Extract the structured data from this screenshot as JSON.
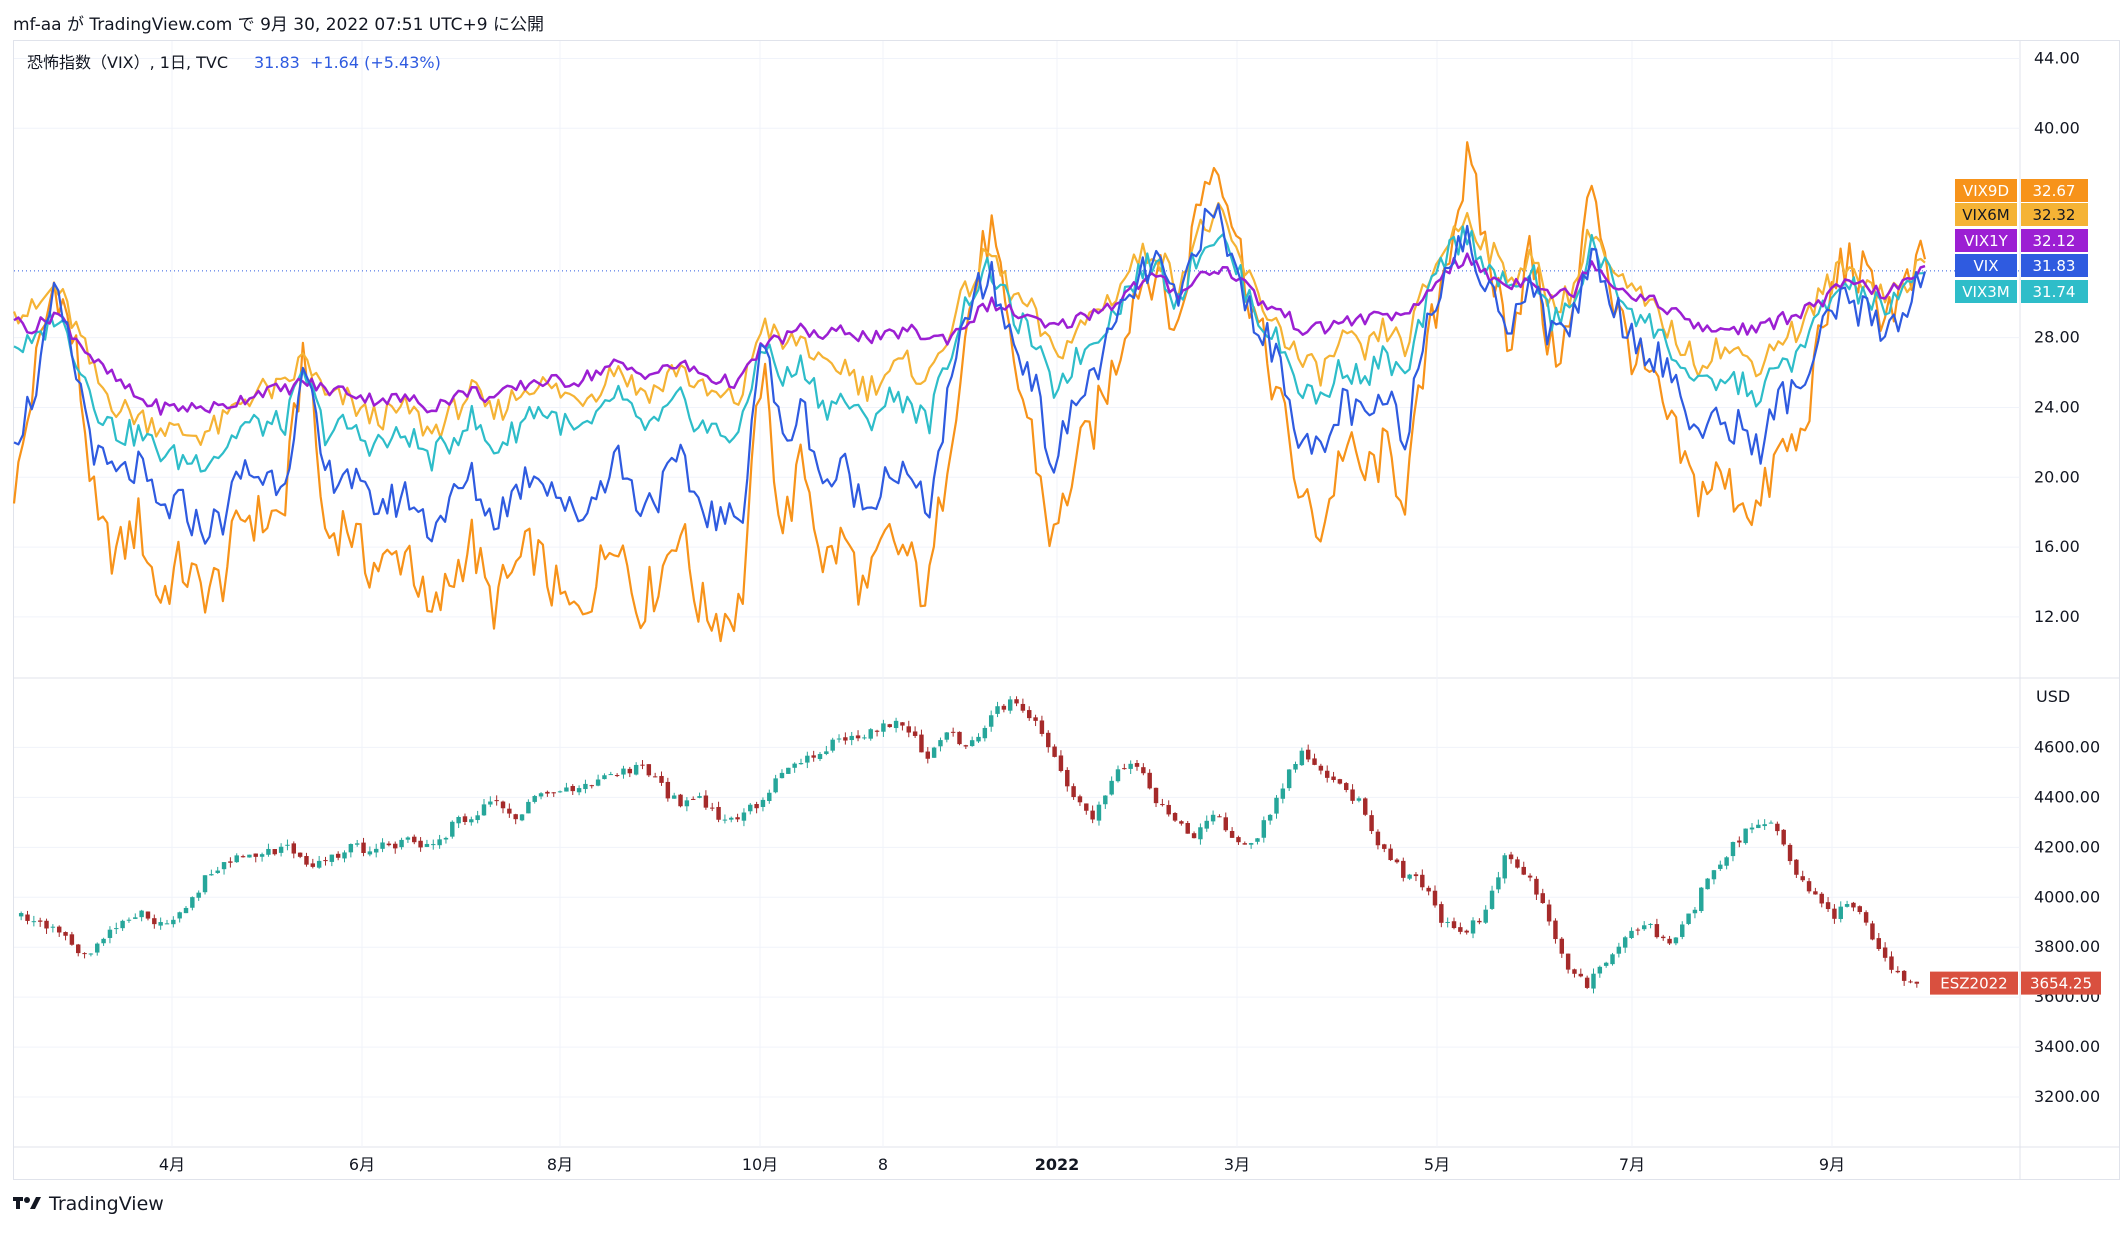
{
  "header": {
    "text": "mf-aa が TradingView.com で 9月 30, 2022 07:51 UTC+9 に公開"
  },
  "legend": {
    "title": "恐怖指数（VIX）, 1日, TVC",
    "last": "31.83",
    "change": "+1.64 (+5.43%)"
  },
  "colors": {
    "VIX9D": "#f7931a",
    "VIX6M": "#f5b335",
    "VIX1Y": "#9c1fd3",
    "VIX": "#2f5be0",
    "VIX3M": "#2ebdc9",
    "candle_up": "#26a69a",
    "candle_down": "#a52a2a",
    "es_label": "#d9503f"
  },
  "footer": {
    "brand": "TradingView",
    "logo_icon": "tradingview-logo-icon"
  },
  "chart_data": [
    {
      "type": "line",
      "ylim": [
        8.5,
        45
      ],
      "y_ticks": [
        "44.00",
        "40.00",
        "28.00",
        "24.00",
        "20.00",
        "16.00",
        "12.00"
      ],
      "x_ticks": [
        "4月",
        "6月",
        "8月",
        "10月",
        "8",
        "2022",
        "3月",
        "5月",
        "7月",
        "9月"
      ],
      "current_line": 31.83,
      "series": [
        {
          "name": "VIX9D",
          "last_label": "32.67",
          "values": [
            18.5,
            26.0,
            31.5,
            27.0,
            17.0,
            15.5,
            17.5,
            13.0,
            15.0,
            13.5,
            14.0,
            18.0,
            17.5,
            18.0,
            28.0,
            16.5,
            17.5,
            15.0,
            15.0,
            16.0,
            11.5,
            14.0,
            16.5,
            12.5,
            14.5,
            16.0,
            13.5,
            12.0,
            14.0,
            17.5,
            12.5,
            14.0,
            17.5,
            12.5,
            12.0,
            12.5,
            26.5,
            17.0,
            21.0,
            15.0,
            16.5,
            13.0,
            16.5,
            15.5,
            13.0,
            22.0,
            29.5,
            34.5,
            27.0,
            22.5,
            16.0,
            20.5,
            23.0,
            26.5,
            31.0,
            32.0,
            28.0,
            36.0,
            38.5,
            33.0,
            28.0,
            24.0,
            18.5,
            17.0,
            22.0,
            20.0,
            21.5,
            19.0,
            27.0,
            33.0,
            38.0,
            32.5,
            28.0,
            33.0,
            27.0,
            28.5,
            37.5,
            30.0,
            27.0,
            25.0,
            22.0,
            19.0,
            20.0,
            19.0,
            18.0,
            21.5,
            22.0,
            28.0,
            32.5,
            31.5,
            29.5,
            30.5,
            32.5
          ]
        },
        {
          "name": "VIX6M",
          "last_label": "32.32",
          "values": [
            29.5,
            29.5,
            31.0,
            28.5,
            25.5,
            24.0,
            23.5,
            23.0,
            22.5,
            22.5,
            23.0,
            24.5,
            25.0,
            25.0,
            27.0,
            24.5,
            24.5,
            23.5,
            23.5,
            24.0,
            22.5,
            23.5,
            25.0,
            23.5,
            24.5,
            25.5,
            25.0,
            24.5,
            25.0,
            26.5,
            25.0,
            25.0,
            26.5,
            25.0,
            24.5,
            24.5,
            29.0,
            27.5,
            28.0,
            26.0,
            26.5,
            25.0,
            26.0,
            26.5,
            25.5,
            28.5,
            31.0,
            33.0,
            30.5,
            29.5,
            27.0,
            28.0,
            29.5,
            30.5,
            32.5,
            33.0,
            31.0,
            34.0,
            35.0,
            32.5,
            30.0,
            28.5,
            26.5,
            26.0,
            28.0,
            27.0,
            28.5,
            27.5,
            31.0,
            33.5,
            35.0,
            33.0,
            31.5,
            32.5,
            30.0,
            30.5,
            34.5,
            31.5,
            30.5,
            29.5,
            28.0,
            26.5,
            27.5,
            27.0,
            26.5,
            28.0,
            28.5,
            30.5,
            32.0,
            31.5,
            30.5,
            31.0,
            32.3
          ]
        },
        {
          "name": "VIX1Y",
          "last_label": "32.12",
          "values": [
            29.0,
            28.5,
            29.5,
            28.0,
            26.5,
            25.5,
            24.5,
            24.0,
            24.0,
            24.0,
            24.0,
            24.5,
            25.0,
            25.0,
            25.5,
            25.0,
            25.0,
            24.5,
            24.5,
            24.5,
            24.0,
            24.5,
            25.0,
            24.5,
            25.0,
            25.5,
            25.5,
            25.5,
            26.0,
            26.5,
            26.0,
            26.0,
            26.5,
            26.0,
            25.5,
            25.5,
            27.5,
            28.0,
            28.5,
            28.0,
            28.5,
            28.0,
            28.0,
            28.5,
            28.0,
            28.0,
            29.0,
            30.0,
            29.5,
            29.0,
            28.5,
            29.0,
            29.5,
            30.0,
            31.0,
            31.5,
            30.5,
            31.5,
            32.0,
            31.5,
            30.0,
            29.5,
            28.5,
            28.5,
            29.0,
            29.0,
            29.5,
            29.0,
            30.5,
            32.0,
            32.5,
            31.5,
            31.0,
            31.5,
            30.5,
            30.5,
            32.5,
            31.0,
            30.5,
            30.0,
            29.5,
            28.5,
            28.5,
            28.5,
            28.5,
            29.0,
            29.5,
            30.0,
            31.0,
            31.0,
            30.5,
            31.0,
            32.1
          ]
        },
        {
          "name": "VIX",
          "last_label": "31.83",
          "values": [
            22.0,
            25.0,
            30.5,
            26.0,
            21.0,
            20.0,
            20.5,
            18.0,
            18.5,
            17.0,
            17.5,
            20.5,
            20.0,
            20.0,
            26.0,
            20.0,
            20.5,
            18.5,
            18.5,
            19.0,
            17.0,
            18.5,
            20.0,
            17.5,
            19.0,
            20.5,
            19.5,
            17.5,
            19.0,
            21.5,
            18.5,
            19.0,
            21.0,
            18.5,
            17.5,
            17.5,
            28.5,
            22.0,
            24.0,
            19.5,
            20.5,
            18.0,
            20.5,
            20.0,
            18.0,
            24.5,
            30.0,
            31.5,
            28.0,
            26.0,
            20.5,
            24.0,
            26.0,
            28.5,
            31.0,
            32.5,
            29.5,
            34.0,
            35.0,
            31.0,
            28.5,
            26.5,
            22.0,
            21.0,
            24.5,
            23.0,
            24.5,
            22.5,
            29.0,
            32.5,
            33.5,
            30.5,
            29.0,
            31.5,
            28.0,
            29.0,
            33.0,
            30.0,
            28.0,
            27.0,
            25.5,
            22.5,
            23.0,
            23.0,
            21.5,
            24.5,
            25.0,
            28.0,
            30.0,
            29.5,
            28.5,
            29.5,
            31.8
          ]
        },
        {
          "name": "VIX3M",
          "last_label": "31.74",
          "values": [
            27.5,
            27.5,
            29.5,
            27.0,
            24.0,
            22.5,
            22.5,
            21.5,
            21.0,
            21.0,
            21.5,
            23.0,
            23.0,
            23.0,
            26.0,
            22.5,
            23.0,
            22.0,
            22.0,
            22.5,
            21.0,
            22.0,
            23.5,
            21.5,
            22.5,
            24.0,
            23.5,
            22.5,
            23.0,
            25.0,
            23.0,
            23.0,
            24.5,
            23.0,
            22.5,
            22.5,
            28.0,
            25.5,
            26.5,
            24.0,
            24.5,
            23.0,
            24.5,
            24.5,
            23.0,
            27.0,
            30.5,
            32.0,
            29.5,
            28.0,
            25.0,
            26.5,
            28.0,
            29.5,
            31.5,
            32.5,
            30.0,
            33.0,
            34.0,
            31.5,
            29.0,
            27.5,
            25.0,
            24.5,
            26.5,
            25.5,
            27.0,
            25.5,
            30.0,
            33.0,
            34.0,
            32.0,
            30.5,
            32.0,
            29.0,
            29.5,
            33.5,
            31.0,
            29.5,
            28.5,
            27.0,
            25.0,
            25.5,
            25.5,
            24.5,
            26.5,
            27.0,
            29.5,
            31.0,
            30.5,
            29.5,
            30.5,
            31.7
          ]
        }
      ]
    },
    {
      "type": "candlestick",
      "ylabel": "USD",
      "ylim": [
        3000,
        4870
      ],
      "y_ticks": [
        "4600.00",
        "4400.00",
        "4200.00",
        "4000.00",
        "3800.00",
        "3600.00",
        "3400.00",
        "3200.00"
      ],
      "last_label": "ESZ2022",
      "last_value": "3654.25",
      "close_anchors": [
        3920,
        3900,
        3860,
        3760,
        3820,
        3920,
        3940,
        3880,
        3960,
        4080,
        4140,
        4160,
        4180,
        4200,
        4100,
        4160,
        4200,
        4190,
        4210,
        4230,
        4200,
        4290,
        4340,
        4380,
        4320,
        4410,
        4420,
        4430,
        4470,
        4500,
        4530,
        4450,
        4360,
        4400,
        4300,
        4320,
        4400,
        4510,
        4540,
        4600,
        4630,
        4660,
        4700,
        4680,
        4560,
        4670,
        4600,
        4720,
        4790,
        4720,
        4600,
        4400,
        4300,
        4500,
        4560,
        4400,
        4300,
        4250,
        4350,
        4200,
        4250,
        4400,
        4580,
        4520,
        4440,
        4380,
        4200,
        4100,
        4050,
        3900,
        3850,
        3940,
        4150,
        4100,
        3950,
        3700,
        3650,
        3750,
        3850,
        3880,
        3800,
        3930,
        4100,
        4200,
        4280,
        4300,
        4100,
        4000,
        3930,
        3980,
        3800,
        3700,
        3654
      ]
    }
  ]
}
